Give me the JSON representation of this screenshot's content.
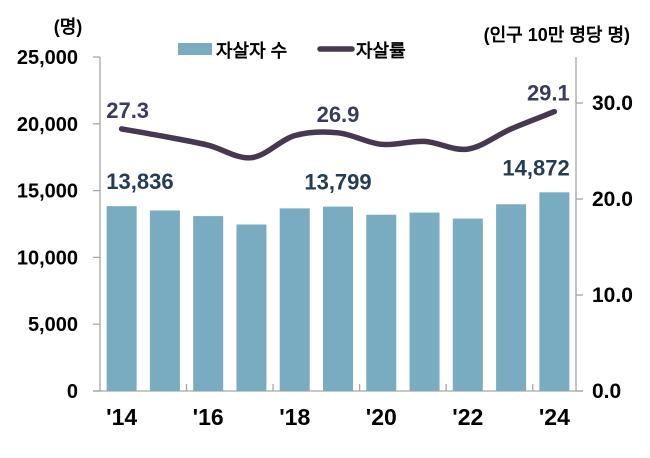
{
  "units": {
    "left": "(명)",
    "right": "(인구 10만 명당 명)"
  },
  "legend": [
    {
      "label": "자살자 수",
      "marker": "bar"
    },
    {
      "label": "자살률",
      "marker": "line"
    }
  ],
  "colors": {
    "bar": "#79ACC0",
    "line": "#463850",
    "bar_label": "#253C52",
    "line_label": "#3A3C5F",
    "axis": "#A6A6A6",
    "tick_text": "#000000"
  },
  "chart_data": {
    "type": "combo-bar-line",
    "categories": [
      "2014",
      "2015",
      "2016",
      "2017",
      "2018",
      "2019",
      "2020",
      "2021",
      "2022",
      "2023",
      "2024"
    ],
    "x_tick_labels": [
      {
        "index": 0,
        "text": "'14"
      },
      {
        "index": 2,
        "text": "'16"
      },
      {
        "index": 4,
        "text": "'18"
      },
      {
        "index": 6,
        "text": "'20"
      },
      {
        "index": 8,
        "text": "'22"
      },
      {
        "index": 10,
        "text": "'24"
      }
    ],
    "series": [
      {
        "name": "자살자 수",
        "type": "bar",
        "axis": "left",
        "values": [
          13836,
          13513,
          13092,
          12463,
          13670,
          13799,
          13195,
          13352,
          12906,
          13978,
          14872
        ]
      },
      {
        "name": "자살률",
        "type": "line",
        "axis": "right",
        "values": [
          27.3,
          26.5,
          25.6,
          24.3,
          26.6,
          26.9,
          25.7,
          26.0,
          25.2,
          27.3,
          29.1
        ]
      }
    ],
    "left_axis": {
      "min": 0,
      "max": 25000,
      "ticks": [
        {
          "v": 0,
          "label": "0"
        },
        {
          "v": 5000,
          "label": "5,000"
        },
        {
          "v": 10000,
          "label": "10,000"
        },
        {
          "v": 15000,
          "label": "15,000"
        },
        {
          "v": 20000,
          "label": "20,000"
        },
        {
          "v": 25000,
          "label": "25,000"
        }
      ]
    },
    "right_axis": {
      "min": 0,
      "ticks": [
        {
          "v": 0,
          "label": "0.0"
        },
        {
          "v": 10,
          "label": "10.0"
        },
        {
          "v": 20,
          "label": "20.0"
        },
        {
          "v": 30,
          "label": "30.0"
        }
      ]
    },
    "data_labels": {
      "bar": [
        {
          "index": 0,
          "text": "13,836"
        },
        {
          "index": 5,
          "text": "13,799"
        },
        {
          "index": 10,
          "text": "14,872"
        }
      ],
      "line": [
        {
          "index": 0,
          "text": "27.3"
        },
        {
          "index": 5,
          "text": "26.9"
        },
        {
          "index": 10,
          "text": "29.1"
        }
      ]
    }
  }
}
